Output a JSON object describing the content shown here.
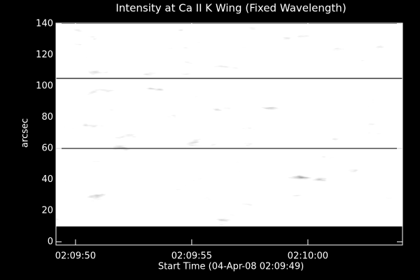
{
  "chart_data": {
    "type": "image",
    "title": "Intensity at Ca II K Wing (Fixed Wavelength)",
    "x_label": "Start Time (04-Apr-08 02:09:49)",
    "y_label": "arcsec",
    "xlim": [
      49.16,
      64.07
    ],
    "xticks": [
      {
        "value": 50,
        "label": "02:09:50"
      },
      {
        "value": 55,
        "label": "02:09:55"
      },
      {
        "value": 60,
        "label": "02:10:00"
      }
    ],
    "ylim": [
      -2,
      140.5
    ],
    "yticks": [
      0,
      20,
      40,
      60,
      80,
      100,
      120,
      140
    ],
    "image_ylim": [
      10,
      140
    ],
    "hlines": [
      60,
      105
    ]
  }
}
